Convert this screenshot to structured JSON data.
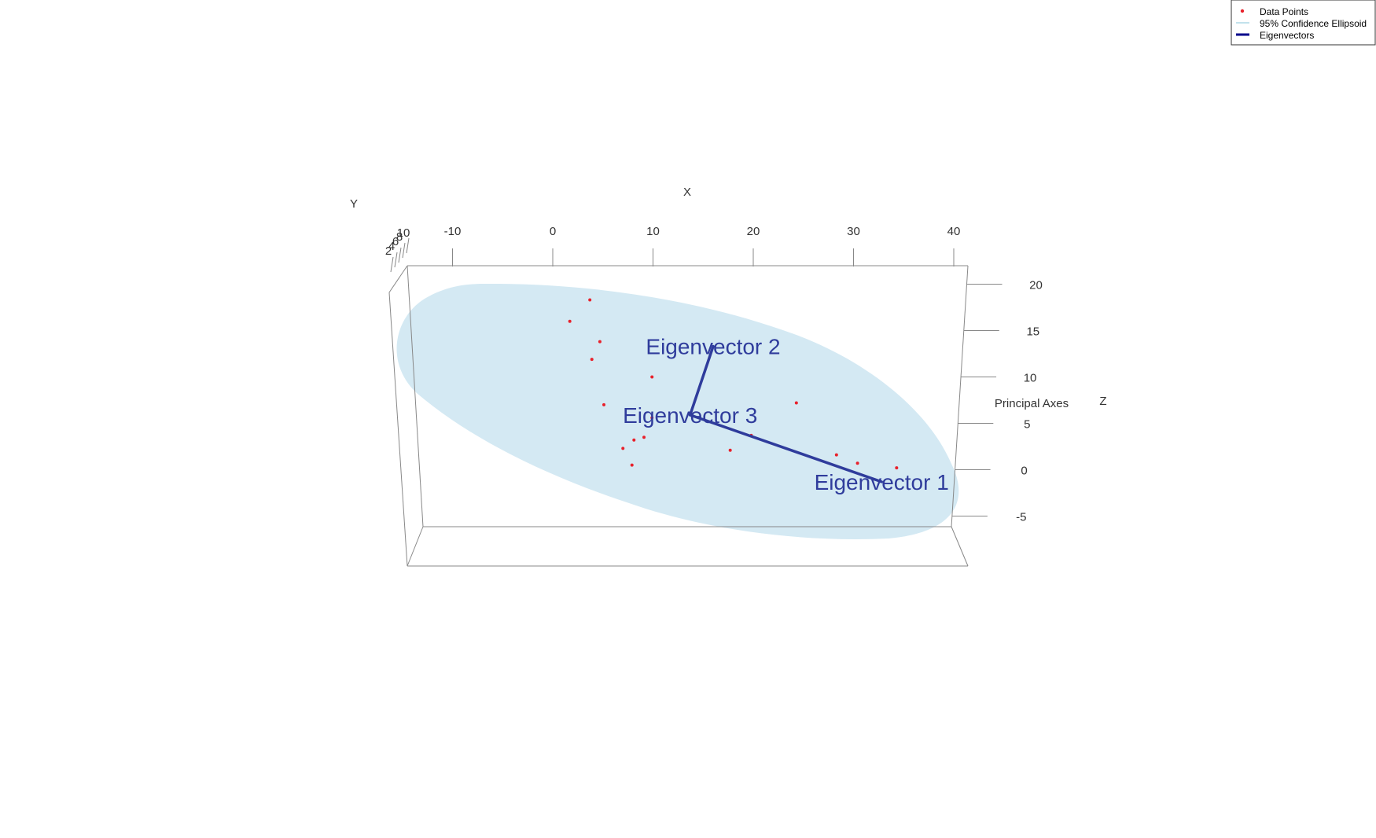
{
  "chart_data": {
    "type": "scatter",
    "title": "",
    "legend": {
      "placement": "top-right",
      "entries": [
        {
          "label": "Data Points",
          "kind": "point",
          "color": "#e8212b"
        },
        {
          "label": "95% Confidence Ellipsoid",
          "kind": "line",
          "color": "#add8e6"
        },
        {
          "label": "Eigenvectors",
          "kind": "line",
          "color": "#00008b"
        }
      ]
    },
    "axes": {
      "x": {
        "label": "X",
        "ticks": [
          "-10",
          "0",
          "10",
          "20",
          "30",
          "40"
        ],
        "range": [
          -15,
          42
        ]
      },
      "z": {
        "label": "Z",
        "ticks": [
          "20",
          "15",
          "10",
          "5",
          "0",
          "-5"
        ],
        "range": [
          -7,
          22
        ]
      },
      "y": {
        "label": "Y",
        "ticks": [
          "10",
          "8",
          "6",
          "4",
          "2"
        ],
        "range": [
          0,
          10
        ]
      },
      "title_right": "Principal Axes"
    },
    "colors": {
      "points": "#e8212b",
      "ellipsoid": "#d4e9f3",
      "eigenvectors": "#2f3c9c",
      "box": "#888888"
    },
    "points": [
      {
        "x": 3.7,
        "z": 18.3
      },
      {
        "x": 1.7,
        "z": 16.0
      },
      {
        "x": 4.7,
        "z": 13.8
      },
      {
        "x": 3.9,
        "z": 11.9
      },
      {
        "x": 9.9,
        "z": 10.0
      },
      {
        "x": 5.1,
        "z": 7.0
      },
      {
        "x": 24.3,
        "z": 7.2
      },
      {
        "x": 9.9,
        "z": 5.6
      },
      {
        "x": 19.8,
        "z": 3.7
      },
      {
        "x": 9.1,
        "z": 3.5
      },
      {
        "x": 8.1,
        "z": 3.2
      },
      {
        "x": 7.0,
        "z": 2.3
      },
      {
        "x": 17.7,
        "z": 2.1
      },
      {
        "x": 28.3,
        "z": 1.6
      },
      {
        "x": 30.4,
        "z": 0.7
      },
      {
        "x": 34.3,
        "z": 0.2
      },
      {
        "x": 7.9,
        "z": 0.5
      }
    ],
    "eigenvectors": [
      {
        "label": "Eigenvector 1",
        "from": {
          "x": 13.7,
          "z": 5.9
        },
        "to": {
          "x": 32.8,
          "z": -1.3
        }
      },
      {
        "label": "Eigenvector 2",
        "from": {
          "x": 13.7,
          "z": 5.9
        },
        "to": {
          "x": 16.0,
          "z": 13.3
        }
      },
      {
        "label": "Eigenvector 3",
        "from": {
          "x": 13.7,
          "z": 5.9
        },
        "to": {
          "x": 13.7,
          "z": 5.9
        }
      }
    ]
  }
}
